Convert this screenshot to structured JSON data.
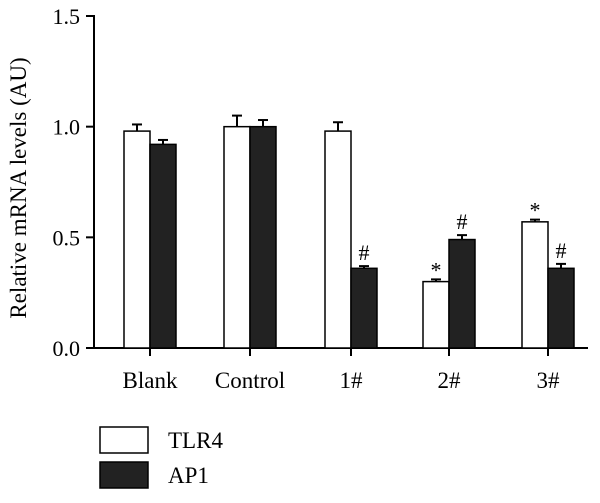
{
  "chart_data": {
    "type": "bar",
    "ylabel": "Relative mRNA levels (AU)",
    "ylim": [
      0,
      1.5
    ],
    "yticks": [
      "0.0",
      "0.5",
      "1.0",
      "1.5"
    ],
    "ytick_values": [
      0,
      0.5,
      1.0,
      1.5
    ],
    "categories": [
      "Blank",
      "Control",
      "1#",
      "2#",
      "3#"
    ],
    "legend_position": "bottom-left",
    "series": [
      {
        "name": "TLR4",
        "color": "#ffffff",
        "values": [
          0.98,
          1.0,
          0.98,
          0.3,
          0.57
        ],
        "errors": [
          0.03,
          0.05,
          0.04,
          0.01,
          0.01
        ],
        "annotations": [
          "",
          "",
          "",
          "*",
          "*"
        ]
      },
      {
        "name": "AP1",
        "color": "#222222",
        "values": [
          0.92,
          1.0,
          0.36,
          0.49,
          0.36
        ],
        "errors": [
          0.02,
          0.03,
          0.01,
          0.02,
          0.02
        ],
        "annotations": [
          "",
          "",
          "#",
          "#",
          "#"
        ]
      }
    ]
  }
}
